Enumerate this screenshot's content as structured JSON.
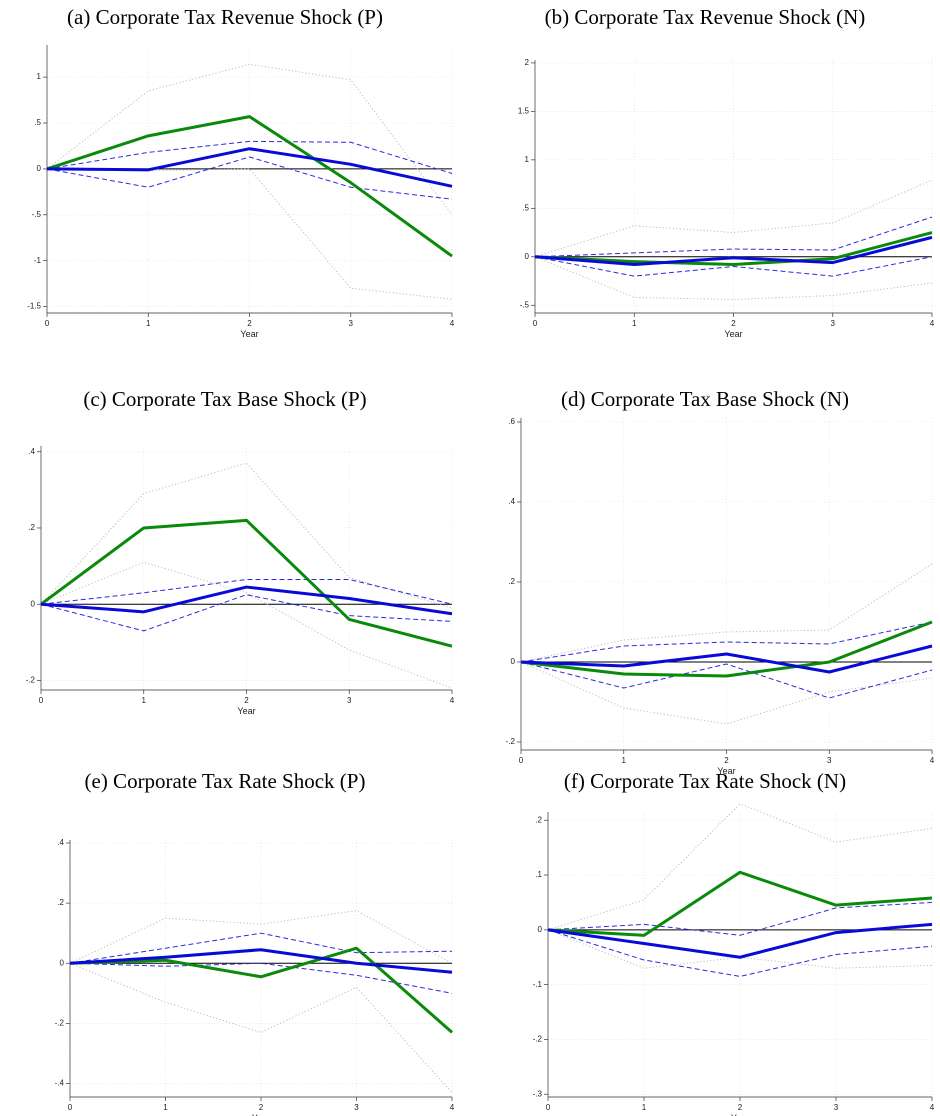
{
  "chart_data": [
    {
      "type": "line",
      "title": "(a) Corporate Tax Revenue Shock (P)",
      "xlabel": "Year",
      "x": [
        0,
        1,
        2,
        3,
        4
      ],
      "xlim": [
        0,
        4
      ],
      "xticks": [
        0,
        1,
        2,
        3,
        4
      ],
      "ylim": [
        -1.57,
        1.35
      ],
      "yticks": [
        1,
        {
          "value": 0.5,
          "label": ".5"
        },
        0,
        {
          "value": -0.5,
          "label": "-.5"
        },
        -1,
        -1.5
      ],
      "grid": true,
      "hline": 0,
      "series": [
        {
          "color": "#bdbdbd",
          "linestyle": "dot",
          "values": [
            0,
            0.85,
            1.14,
            0.97,
            -0.5
          ]
        },
        {
          "color": "#bdbdbd",
          "linestyle": "dot",
          "values": [
            0,
            -0.02,
            0.0,
            -1.3,
            -1.42
          ]
        },
        {
          "color": "#2b2bdc",
          "linestyle": "dash",
          "values": [
            0,
            0.18,
            0.3,
            0.29,
            -0.05
          ]
        },
        {
          "color": "#2b2bdc",
          "linestyle": "dash",
          "values": [
            0,
            -0.2,
            0.13,
            -0.2,
            -0.33
          ]
        },
        {
          "color": "#0a8a0a",
          "linestyle": "solid",
          "values": [
            0,
            0.36,
            0.57,
            -0.15,
            -0.95
          ]
        },
        {
          "color": "#0a0ad8",
          "linestyle": "solid",
          "values": [
            0,
            -0.01,
            0.22,
            0.05,
            -0.19
          ]
        }
      ]
    },
    {
      "type": "line",
      "title": "(b) Corporate Tax Revenue Shock (N)",
      "xlabel": "Year",
      "x": [
        0,
        1,
        2,
        3,
        4
      ],
      "xlim": [
        0,
        4
      ],
      "xticks": [
        0,
        1,
        2,
        3,
        4
      ],
      "ylim": [
        -0.58,
        2.03
      ],
      "yticks": [
        2,
        1.5,
        1,
        {
          "value": 0.5,
          "label": ".5"
        },
        0,
        {
          "value": -0.5,
          "label": "-.5"
        }
      ],
      "grid": true,
      "hline": 0,
      "series": [
        {
          "color": "#bdbdbd",
          "linestyle": "dot",
          "values": [
            0,
            0.32,
            0.25,
            0.35,
            0.79
          ]
        },
        {
          "color": "#bdbdbd",
          "linestyle": "dot",
          "values": [
            0,
            -0.42,
            -0.44,
            -0.4,
            -0.27
          ]
        },
        {
          "color": "#2b2bdc",
          "linestyle": "dash",
          "values": [
            0,
            0.04,
            0.08,
            0.07,
            0.41
          ]
        },
        {
          "color": "#2b2bdc",
          "linestyle": "dash",
          "values": [
            0,
            -0.2,
            -0.1,
            -0.2,
            0.0
          ]
        },
        {
          "color": "#0a8a0a",
          "linestyle": "solid",
          "values": [
            0,
            -0.05,
            -0.08,
            -0.02,
            0.25
          ]
        },
        {
          "color": "#0a0ad8",
          "linestyle": "solid",
          "values": [
            0,
            -0.08,
            -0.01,
            -0.06,
            0.2
          ]
        }
      ]
    },
    {
      "type": "line",
      "title": "(c) Corporate Tax Base Shock (P)",
      "xlabel": "Year",
      "x": [
        0,
        1,
        2,
        3,
        4
      ],
      "xlim": [
        0,
        4
      ],
      "xticks": [
        0,
        1,
        2,
        3,
        4
      ],
      "ylim": [
        -0.225,
        0.415
      ],
      "yticks": [
        {
          "value": 0.4,
          "label": ".4"
        },
        {
          "value": 0.2,
          "label": ".2"
        },
        0,
        {
          "value": -0.2,
          "label": "-.2"
        }
      ],
      "grid": true,
      "hline": 0,
      "series": [
        {
          "color": "#bdbdbd",
          "linestyle": "dot",
          "values": [
            0,
            0.29,
            0.37,
            0.07,
            -0.01
          ]
        },
        {
          "color": "#bdbdbd",
          "linestyle": "dot",
          "values": [
            0,
            0.11,
            0.03,
            -0.12,
            -0.22
          ]
        },
        {
          "color": "#2b2bdc",
          "linestyle": "dash",
          "values": [
            0,
            0.03,
            0.065,
            0.065,
            0.0
          ]
        },
        {
          "color": "#2b2bdc",
          "linestyle": "dash",
          "values": [
            0,
            -0.07,
            0.025,
            -0.03,
            -0.045
          ]
        },
        {
          "color": "#0a8a0a",
          "linestyle": "solid",
          "values": [
            0,
            0.2,
            0.22,
            -0.04,
            -0.11
          ]
        },
        {
          "color": "#0a0ad8",
          "linestyle": "solid",
          "values": [
            0,
            -0.02,
            0.045,
            0.015,
            -0.025
          ]
        }
      ]
    },
    {
      "type": "line",
      "title": "(d) Corporate Tax Base Shock (N)",
      "xlabel": "Year",
      "x": [
        0,
        1,
        2,
        3,
        4
      ],
      "xlim": [
        0,
        4
      ],
      "xticks": [
        0,
        1,
        2,
        3,
        4
      ],
      "ylim": [
        -0.22,
        0.61
      ],
      "yticks": [
        {
          "value": 0.6,
          "label": ".6"
        },
        {
          "value": 0.4,
          "label": ".4"
        },
        {
          "value": 0.2,
          "label": ".2"
        },
        0,
        {
          "value": -0.2,
          "label": "-.2"
        }
      ],
      "grid": true,
      "hline": 0,
      "series": [
        {
          "color": "#bdbdbd",
          "linestyle": "dot",
          "values": [
            0,
            0.055,
            0.075,
            0.08,
            0.245
          ]
        },
        {
          "color": "#bdbdbd",
          "linestyle": "dot",
          "values": [
            0,
            -0.115,
            -0.155,
            -0.075,
            -0.04
          ]
        },
        {
          "color": "#2b2bdc",
          "linestyle": "dash",
          "values": [
            0,
            0.04,
            0.05,
            0.045,
            0.1
          ]
        },
        {
          "color": "#2b2bdc",
          "linestyle": "dash",
          "values": [
            0,
            -0.065,
            -0.005,
            -0.09,
            -0.02
          ]
        },
        {
          "color": "#0a8a0a",
          "linestyle": "solid",
          "values": [
            0,
            -0.03,
            -0.035,
            0.0,
            0.1
          ]
        },
        {
          "color": "#0a0ad8",
          "linestyle": "solid",
          "values": [
            0,
            -0.01,
            0.02,
            -0.025,
            0.04
          ]
        }
      ]
    },
    {
      "type": "line",
      "title": "(e) Corporate Tax Rate Shock (P)",
      "xlabel": "Year",
      "x": [
        0,
        1,
        2,
        3,
        4
      ],
      "xlim": [
        0,
        4
      ],
      "xticks": [
        0,
        1,
        2,
        3,
        4
      ],
      "ylim": [
        -0.445,
        0.41
      ],
      "yticks": [
        {
          "value": 0.4,
          "label": ".4"
        },
        {
          "value": 0.2,
          "label": ".2"
        },
        0,
        {
          "value": -0.2,
          "label": "-.2"
        },
        {
          "value": -0.4,
          "label": "-.4"
        }
      ],
      "grid": true,
      "hline": 0,
      "series": [
        {
          "color": "#bdbdbd",
          "linestyle": "dot",
          "values": [
            0,
            0.15,
            0.13,
            0.175,
            0.0
          ]
        },
        {
          "color": "#bdbdbd",
          "linestyle": "dot",
          "values": [
            0,
            -0.13,
            -0.23,
            -0.08,
            -0.43
          ]
        },
        {
          "color": "#2b2bdc",
          "linestyle": "dash",
          "values": [
            0,
            0.05,
            0.1,
            0.035,
            0.04
          ]
        },
        {
          "color": "#2b2bdc",
          "linestyle": "dash",
          "values": [
            0,
            -0.01,
            0.0,
            -0.04,
            -0.1
          ]
        },
        {
          "color": "#0a8a0a",
          "linestyle": "solid",
          "values": [
            0,
            0.01,
            -0.045,
            0.05,
            -0.23
          ]
        },
        {
          "color": "#0a0ad8",
          "linestyle": "solid",
          "values": [
            0,
            0.02,
            0.045,
            0.0,
            -0.03
          ]
        }
      ]
    },
    {
      "type": "line",
      "title": "(f) Corporate Tax Rate Shock (N)",
      "xlabel": "Year",
      "x": [
        0,
        1,
        2,
        3,
        4
      ],
      "xlim": [
        0,
        4
      ],
      "xticks": [
        0,
        1,
        2,
        3,
        4
      ],
      "ylim": [
        -0.305,
        0.215
      ],
      "yticks": [
        {
          "value": 0.2,
          "label": ".2"
        },
        {
          "value": 0.1,
          "label": ".1"
        },
        0,
        {
          "value": -0.1,
          "label": "-.1"
        },
        {
          "value": -0.2,
          "label": "-.2"
        },
        {
          "value": -0.3,
          "label": "-.3"
        }
      ],
      "grid": true,
      "hline": 0,
      "series": [
        {
          "color": "#bdbdbd",
          "linestyle": "dot",
          "values": [
            0,
            0.055,
            0.23,
            0.16,
            0.185
          ]
        },
        {
          "color": "#bdbdbd",
          "linestyle": "dot",
          "values": [
            0,
            -0.07,
            -0.05,
            -0.07,
            -0.065
          ]
        },
        {
          "color": "#2b2bdc",
          "linestyle": "dash",
          "values": [
            0,
            0.01,
            -0.01,
            0.04,
            0.05
          ]
        },
        {
          "color": "#2b2bdc",
          "linestyle": "dash",
          "values": [
            0,
            -0.055,
            -0.085,
            -0.045,
            -0.03
          ]
        },
        {
          "color": "#0a8a0a",
          "linestyle": "solid",
          "values": [
            0,
            -0.01,
            0.105,
            0.045,
            0.058
          ]
        },
        {
          "color": "#0a0ad8",
          "linestyle": "solid",
          "values": [
            0,
            -0.025,
            -0.05,
            -0.005,
            0.01
          ]
        }
      ]
    }
  ]
}
